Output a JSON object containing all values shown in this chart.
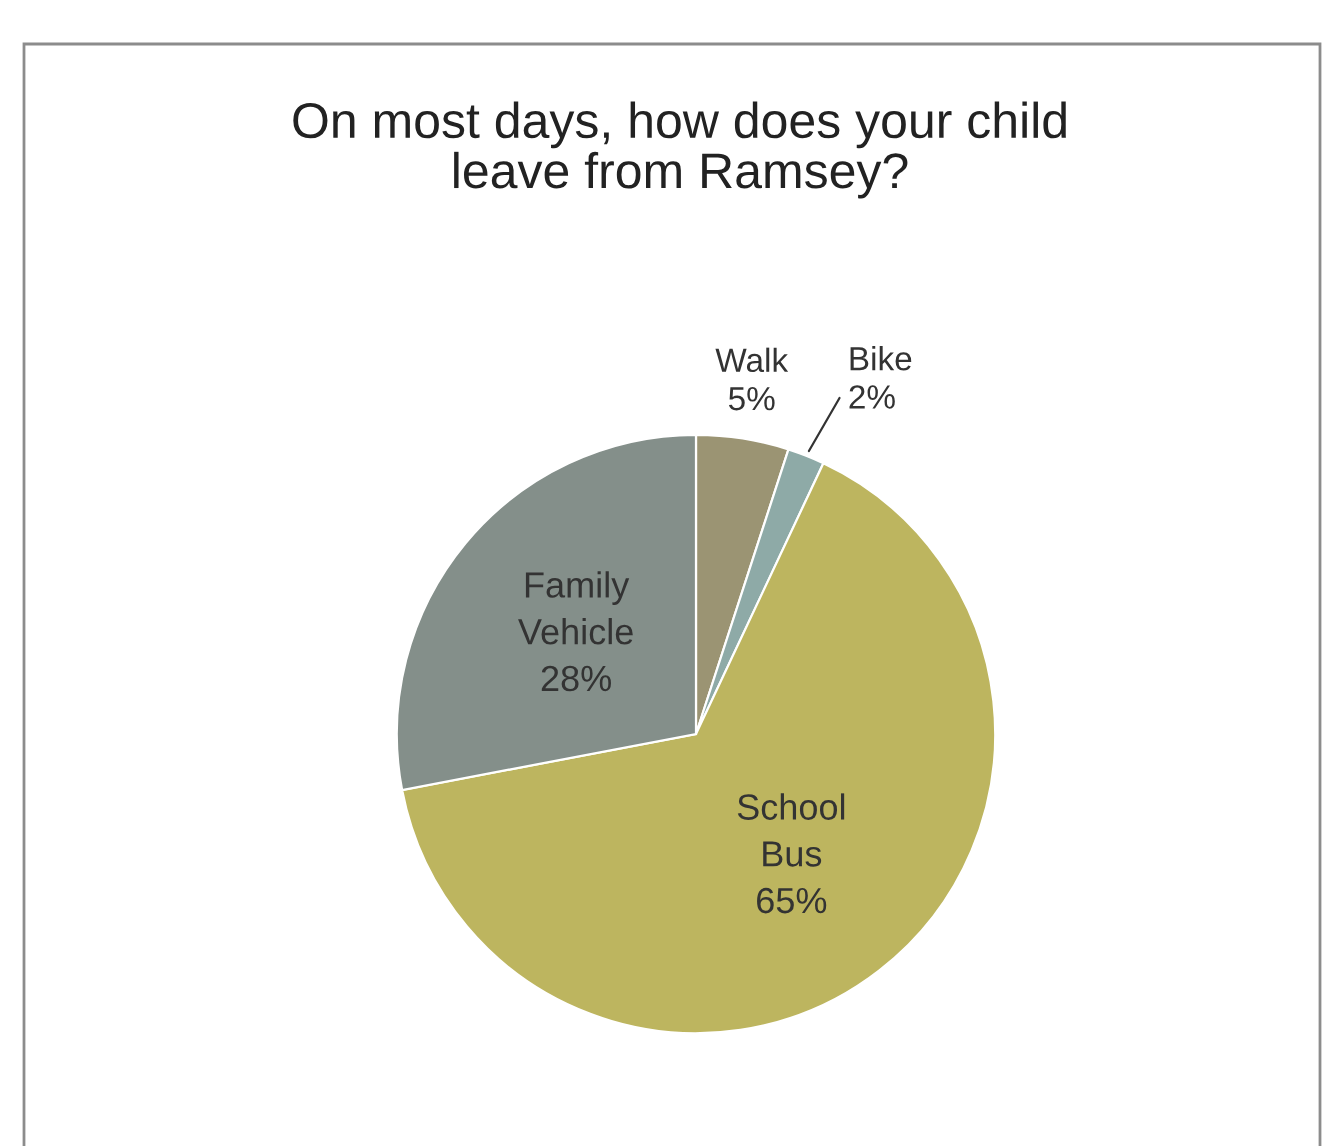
{
  "chart_data": {
    "type": "pie",
    "title": "On most days, how does your child\nleave from Ramsey?",
    "categories": [
      "Walk",
      "Bike",
      "School Bus",
      "Family Vehicle"
    ],
    "values": [
      5,
      2,
      65,
      28
    ],
    "colors": [
      "#9b9473",
      "#8eaaa7",
      "#bdb55f",
      "#848f8a"
    ],
    "value_labels": [
      "5%",
      "2%",
      "65%",
      "28%"
    ],
    "legend": false
  }
}
